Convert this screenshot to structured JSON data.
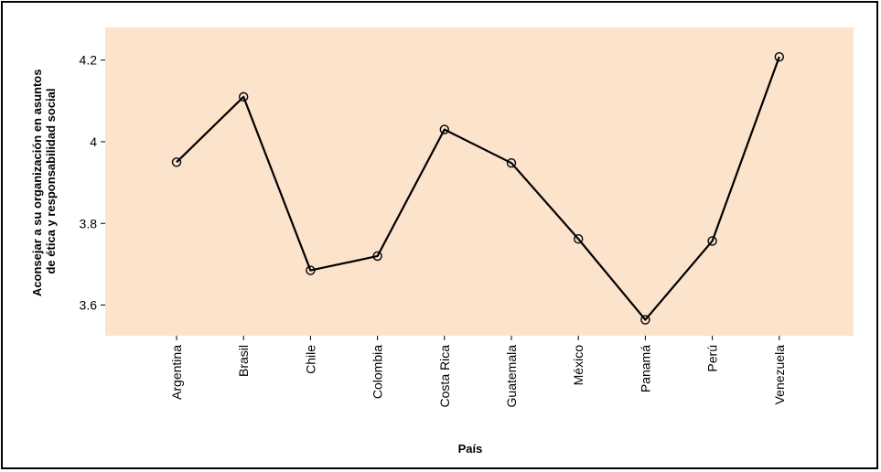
{
  "chart_data": {
    "type": "line",
    "title": "",
    "xlabel": "País",
    "ylabel_lines": [
      "Aconsejar a su organización en asuntos",
      "de ética y responsabilidad social"
    ],
    "categories": [
      "Argentina",
      "Brasil",
      "Chile",
      "Colombia",
      "Costa Rica",
      "Guatemala",
      "México",
      "Panamá",
      "Perú",
      "Venezuela"
    ],
    "series": [
      {
        "values": [
          3.95,
          4.11,
          3.685,
          3.72,
          4.03,
          3.948,
          3.762,
          3.564,
          3.757,
          4.208
        ]
      }
    ],
    "ylim": [
      3.525,
      4.28
    ],
    "yticks": [
      3.6,
      3.8,
      4,
      4.2
    ],
    "ytick_labels": [
      "3.6",
      "3.8",
      "4",
      "4.2"
    ],
    "grid": false,
    "colors": {
      "plot_background": "#fbe3cc",
      "line": "#000000",
      "frame": "#000000"
    }
  }
}
